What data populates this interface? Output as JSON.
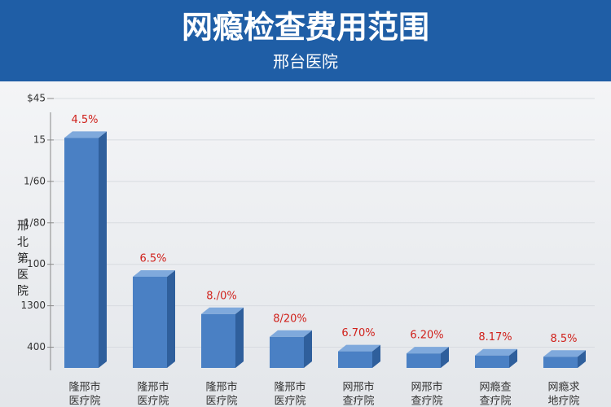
{
  "chart_data": {
    "type": "bar3d",
    "title": "网瘾检查费用范围",
    "subtitle": "邢台医院",
    "y_label": "邢北第医院",
    "categories": [
      [
        "隆邢市",
        "医疗院"
      ],
      [
        "隆邢市",
        "医疗院"
      ],
      [
        "隆邢市",
        "医疗院"
      ],
      [
        "隆邢市",
        "医疗院"
      ],
      [
        "网邢市",
        "查疗院"
      ],
      [
        "网邢市",
        "查疗院"
      ],
      [
        "网瘾查",
        "查疗院"
      ],
      [
        "网瘾求",
        "地疗院"
      ]
    ],
    "values": [
      5.55,
      2.2,
      1.3,
      0.75,
      0.4,
      0.35,
      0.3,
      0.27
    ],
    "annotations": [
      "4.5%",
      "6.5%",
      "8./0%",
      "8/20%",
      "6.70%",
      "6.20%",
      "8.17%",
      "8.5%"
    ],
    "color": "#4a80c4",
    "ylim": [
      0,
      6.5
    ],
    "yticks": [
      {
        "value": 0.5,
        "label": "400"
      },
      {
        "value": 1.5,
        "label": "1300"
      },
      {
        "value": 2.5,
        "label": "100"
      },
      {
        "value": 3.5,
        "label": "1/80"
      },
      {
        "value": 4.5,
        "label": "1/60"
      },
      {
        "value": 5.5,
        "label": "15"
      },
      {
        "value": 6.5,
        "label": "$45"
      }
    ],
    "grid": true
  }
}
